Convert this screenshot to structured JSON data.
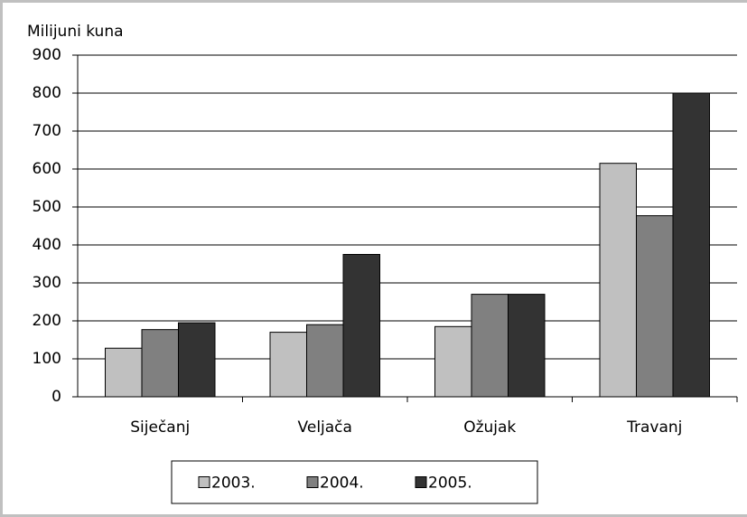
{
  "chart_data": {
    "type": "bar",
    "y_label": "Milijuni kuna",
    "categories": [
      "Siječanj",
      "Veljača",
      "Ožujak",
      "Travanj"
    ],
    "series": [
      {
        "name": "2003.",
        "color": "#c0c0c0",
        "values": [
          128,
          170,
          185,
          615
        ]
      },
      {
        "name": "2004.",
        "color": "#808080",
        "values": [
          177,
          190,
          270,
          477
        ]
      },
      {
        "name": "2005.",
        "color": "#333333",
        "values": [
          195,
          375,
          270,
          800
        ]
      }
    ],
    "ylim": [
      0,
      900
    ],
    "yticks": [
      0,
      100,
      200,
      300,
      400,
      500,
      600,
      700,
      800,
      900
    ],
    "grid": true,
    "legend": "bottom"
  }
}
